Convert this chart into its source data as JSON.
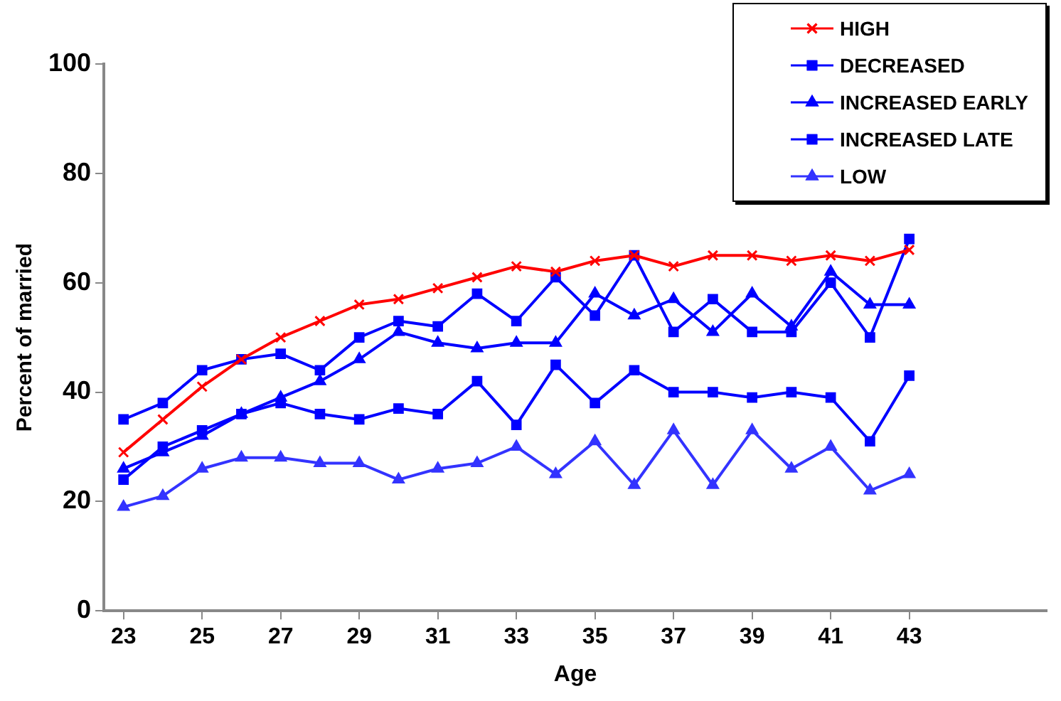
{
  "chart_data": {
    "type": "line",
    "xlabel": "Age",
    "ylabel": "Percent of married",
    "x": [
      23,
      24,
      25,
      26,
      27,
      28,
      29,
      30,
      31,
      32,
      33,
      34,
      35,
      36,
      37,
      38,
      39,
      40,
      41,
      42,
      43
    ],
    "xlim": [
      22.5,
      46.5
    ],
    "xticks": [
      23,
      25,
      27,
      29,
      31,
      33,
      35,
      37,
      39,
      41,
      43
    ],
    "ylim": [
      0,
      100
    ],
    "yticks": [
      0,
      20,
      40,
      60,
      80,
      100
    ],
    "grid": false,
    "legend": "top right",
    "line_style": "solid",
    "series": [
      {
        "name": "HIGH",
        "color": "#ff0000",
        "marker": "cross",
        "values": [
          29,
          35,
          41,
          46,
          50,
          53,
          56,
          57,
          59,
          61,
          63,
          62,
          64,
          65,
          63,
          65,
          65,
          64,
          65,
          64,
          66
        ]
      },
      {
        "name": "DECREASED",
        "color": "#0000ff",
        "marker": "square",
        "values": [
          24,
          30,
          33,
          36,
          38,
          36,
          35,
          37,
          36,
          42,
          34,
          45,
          38,
          44,
          40,
          40,
          39,
          40,
          39,
          31,
          43
        ]
      },
      {
        "name": "INCREASED EARLY",
        "color": "#0000ff",
        "marker": "triangle",
        "values": [
          26,
          29,
          32,
          36,
          39,
          42,
          46,
          51,
          49,
          48,
          49,
          49,
          58,
          54,
          57,
          51,
          58,
          52,
          62,
          56,
          56
        ]
      },
      {
        "name": "INCREASED LATE",
        "color": "#0000ff",
        "marker": "square",
        "values": [
          35,
          38,
          44,
          46,
          47,
          44,
          50,
          53,
          52,
          58,
          53,
          61,
          54,
          65,
          51,
          57,
          51,
          51,
          60,
          50,
          68
        ]
      },
      {
        "name": "LOW",
        "color": "#3333ff",
        "marker": "triangle",
        "values": [
          19,
          21,
          26,
          28,
          28,
          27,
          27,
          24,
          26,
          27,
          30,
          25,
          31,
          23,
          33,
          23,
          33,
          26,
          30,
          22,
          25
        ]
      }
    ]
  }
}
